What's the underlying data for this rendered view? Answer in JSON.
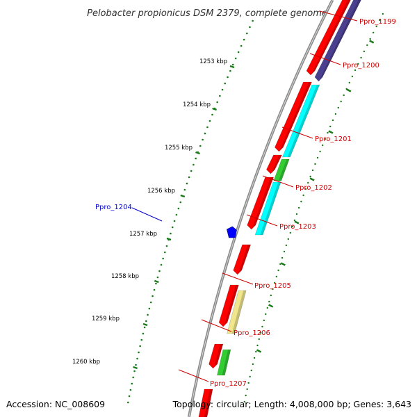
{
  "title": "Pelobacter propionicus DSM 2379, complete genome",
  "footer": {
    "accession": "Accession: NC_008609",
    "topology": "Topology: circular; Length: 4,008,000 bp; Genes: 3,643"
  },
  "colors": {
    "forward_label": "#cc0000",
    "reverse_label": "#0000cc",
    "tick": "#1a7a1a",
    "backbone": "#8a8a8a",
    "cds_forward": "#ff0000",
    "cds_cyan": "#00ffff",
    "cds_purple": "#4b3f8f",
    "cds_green": "#33cc33",
    "cds_khaki": "#f0e68c",
    "cds_reverse_marker": "#0000ff"
  },
  "ticks": [
    {
      "label": "1253 kbp"
    },
    {
      "label": "1254 kbp"
    },
    {
      "label": "1255 kbp"
    },
    {
      "label": "1256 kbp"
    },
    {
      "label": "1257 kbp"
    },
    {
      "label": "1258 kbp"
    },
    {
      "label": "1259 kbp"
    },
    {
      "label": "1260 kbp"
    }
  ],
  "genes": [
    {
      "name": "Ppro_1199",
      "strand": "forward"
    },
    {
      "name": "Ppro_1200",
      "strand": "forward"
    },
    {
      "name": "Ppro_1201",
      "strand": "forward"
    },
    {
      "name": "Ppro_1202",
      "strand": "forward"
    },
    {
      "name": "Ppro_1203",
      "strand": "forward"
    },
    {
      "name": "Ppro_1204",
      "strand": "reverse"
    },
    {
      "name": "Ppro_1205",
      "strand": "forward"
    },
    {
      "name": "Ppro_1206",
      "strand": "forward"
    },
    {
      "name": "Ppro_1207",
      "strand": "forward"
    }
  ]
}
